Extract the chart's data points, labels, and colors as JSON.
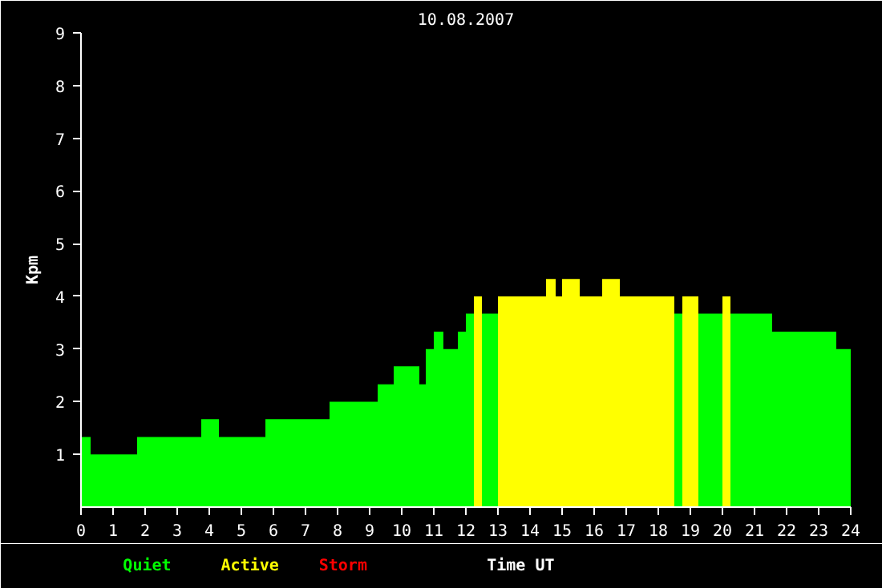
{
  "chart_data": {
    "type": "histogram",
    "title": "10.08.2007",
    "xlabel": "Time UT",
    "ylabel": "Kpm",
    "bins": [
      0,
      0.3,
      1.75,
      3.75,
      4.3,
      5.75,
      7.75,
      9.25,
      9.75,
      10.55,
      10.75,
      11.0,
      11.3,
      11.75,
      12.0,
      12.25,
      12.5,
      13.0,
      14.5,
      14.8,
      15.0,
      15.55,
      16.25,
      16.8,
      18.5,
      18.75,
      19.25,
      20.0,
      20.25,
      21.55,
      23.55,
      24
    ],
    "series": [
      {
        "name": "Quiet",
        "color": "#00ff00",
        "values": [
          1.33,
          1.0,
          1.33,
          1.67,
          1.33,
          1.67,
          2.0,
          2.33,
          2.67,
          2.33,
          3.0,
          3.33,
          3.0,
          3.33,
          3.67,
          null,
          3.67,
          null,
          null,
          null,
          null,
          null,
          null,
          null,
          3.67,
          null,
          3.67,
          null,
          3.67,
          3.33,
          3.0
        ]
      },
      {
        "name": "Active",
        "color": "#ffff00",
        "values": [
          null,
          null,
          null,
          null,
          null,
          null,
          null,
          null,
          null,
          null,
          null,
          null,
          null,
          null,
          null,
          4.0,
          null,
          4.0,
          4.33,
          4.0,
          4.33,
          4.0,
          4.33,
          4.0,
          null,
          4.0,
          null,
          4.0,
          null,
          null,
          null
        ]
      }
    ],
    "annotations": [
      "Storm"
    ],
    "xlim": [
      0,
      24
    ],
    "xticks": [
      0,
      1,
      2,
      3,
      4,
      5,
      6,
      7,
      8,
      9,
      10,
      11,
      12,
      13,
      14,
      15,
      16,
      17,
      18,
      19,
      20,
      21,
      22,
      23,
      24
    ],
    "ylim": [
      0,
      9
    ],
    "yticks": [
      1,
      2,
      3,
      4,
      5,
      6,
      7,
      8,
      9
    ],
    "grid": false
  }
}
